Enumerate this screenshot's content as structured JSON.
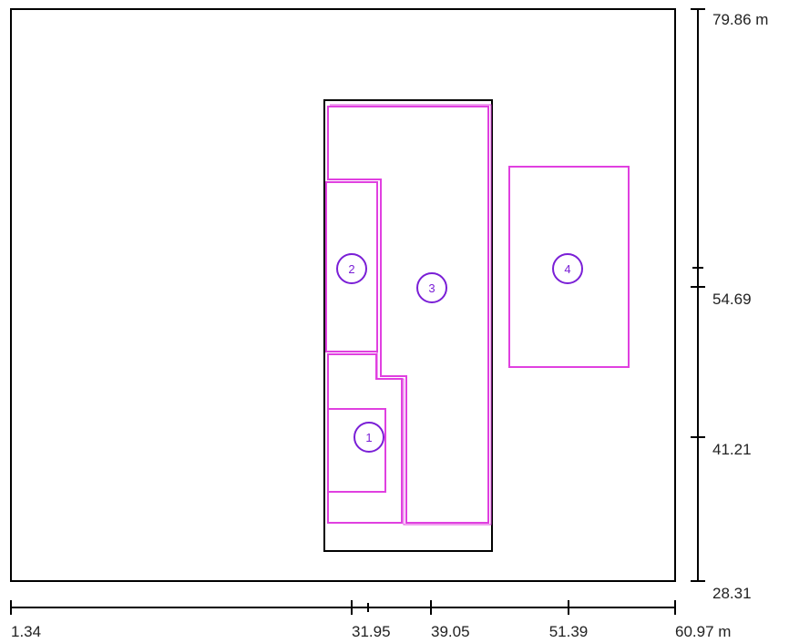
{
  "units": "m",
  "x_axis": {
    "ticks": [
      "1.34",
      "31.95",
      "39.05",
      "51.39",
      "60.97 m"
    ]
  },
  "y_axis": {
    "ticks": [
      "79.86 m",
      "54.69",
      "41.21",
      "28.31"
    ]
  },
  "zones": [
    {
      "id": "1",
      "label": "1"
    },
    {
      "id": "2",
      "label": "2"
    },
    {
      "id": "3",
      "label": "3"
    },
    {
      "id": "4",
      "label": "4"
    }
  ],
  "colors": {
    "outline": "#000000",
    "zone": "#e040e0",
    "marker": "#7a1fd6"
  }
}
